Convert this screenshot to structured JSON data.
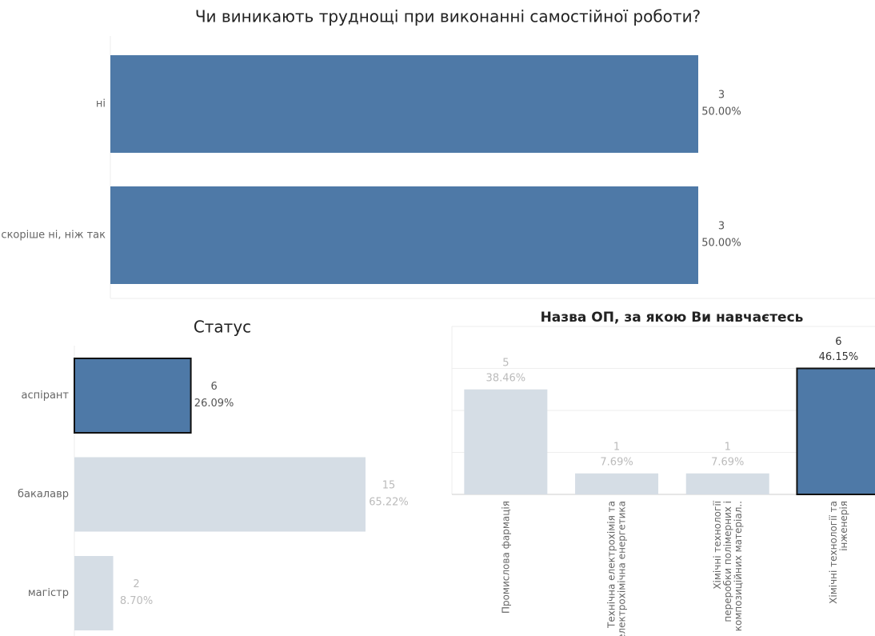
{
  "chart_data": [
    {
      "type": "hbar",
      "title": "Чи виникають труднощі при виконанні самостійної роботи?",
      "categories": [
        "ні",
        "скоріше ні, ніж так"
      ],
      "values": [
        3,
        3
      ],
      "percent_labels": [
        "50.00%",
        "50.00%"
      ],
      "colors": [
        "#4e79a7",
        "#4e79a7"
      ],
      "outline": [
        false,
        false
      ],
      "xlim": [
        0,
        3
      ]
    },
    {
      "type": "hbar",
      "title": "Статус",
      "categories": [
        "аспірант",
        "бакалавр",
        "магістр"
      ],
      "values": [
        6,
        15,
        2
      ],
      "percent_labels": [
        "26.09%",
        "65.22%",
        "8.70%"
      ],
      "colors": [
        "#4e79a7",
        "#d5dde5",
        "#d5dde5"
      ],
      "outline": [
        true,
        false,
        false
      ],
      "xlim": [
        0,
        15
      ]
    },
    {
      "type": "vbar",
      "title": "Назва ОП, за якою Ви навчаєтесь",
      "categories": [
        "Промислова фармація",
        "Технічна електрохімія та\nелектрохімічна енергетика",
        "Хімічні технології\nпереробки полімерних і\nкомпозиційних матеріал..",
        "Хімічні технології та\nінженерія"
      ],
      "values": [
        5,
        1,
        1,
        6
      ],
      "percent_labels": [
        "38.46%",
        "7.69%",
        "7.69%",
        "46.15%"
      ],
      "colors": [
        "#d5dde5",
        "#d5dde5",
        "#d5dde5",
        "#4e79a7"
      ],
      "outline": [
        false,
        false,
        false,
        true
      ],
      "ylim": [
        0,
        8
      ],
      "yticks": [
        0,
        2,
        4,
        6,
        8
      ],
      "grid": true
    }
  ]
}
